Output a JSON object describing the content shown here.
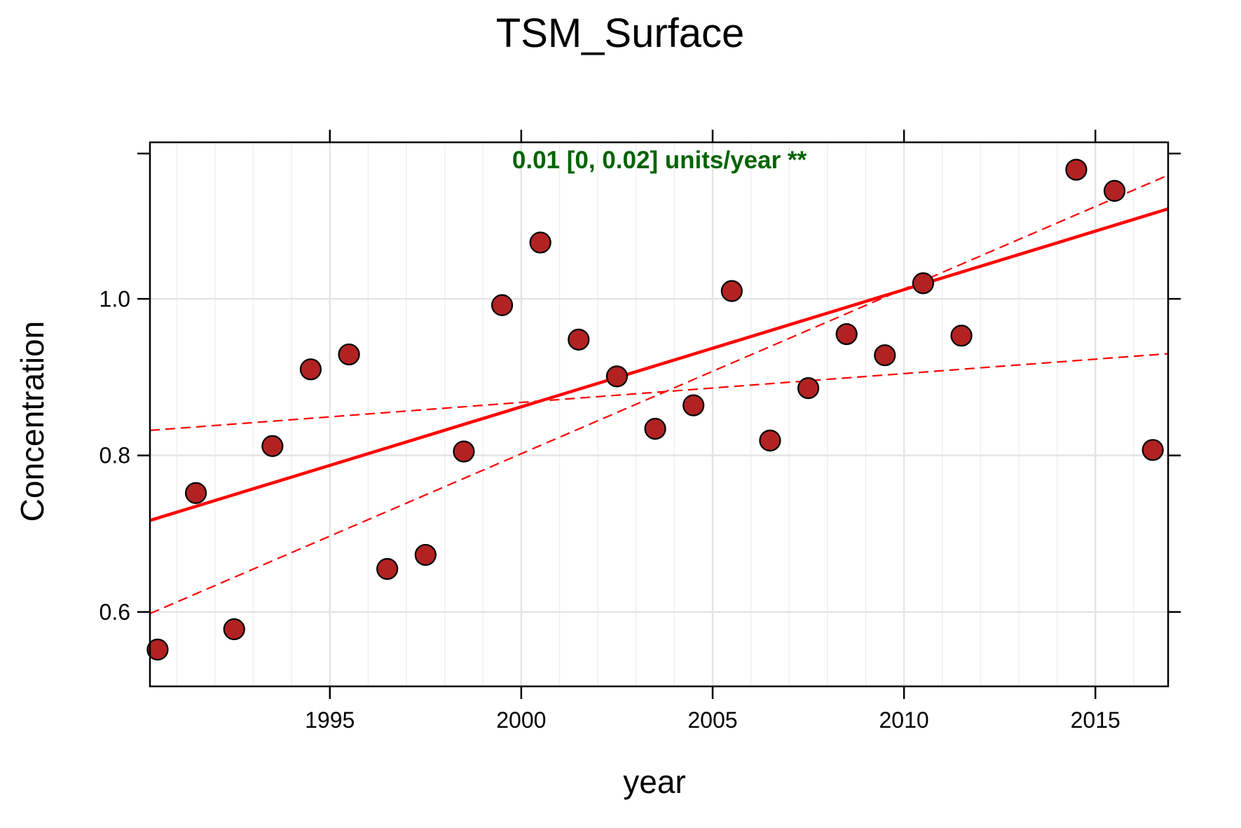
{
  "chart_data": {
    "type": "scatter",
    "title": "TSM_Surface",
    "xlabel": "year",
    "ylabel": "Concentration",
    "xlim": [
      1990.3,
      2016.9
    ],
    "ylim": [
      0.505,
      1.2
    ],
    "x_ticks": [
      1995,
      2000,
      2005,
      2010,
      2015
    ],
    "x_tick_labels": [
      "1995",
      "2000",
      "2005",
      "2010",
      "2015"
    ],
    "y_ticks": [
      0.6,
      0.8,
      1.0
    ],
    "y_tick_labels": [
      "0.6",
      "0.8",
      "1.0"
    ],
    "grid": true,
    "annotation": "0.01 [0, 0.02] units/year **",
    "annotation_color": "#006400",
    "point_color": "#B22222",
    "trend_color": "#FF0000",
    "points": {
      "x": [
        1990.5,
        1991.5,
        1992.5,
        1993.5,
        1994.5,
        1995.5,
        1996.5,
        1997.5,
        1998.5,
        1999.5,
        2000.5,
        2001.5,
        2002.5,
        2003.5,
        2004.5,
        2005.5,
        2006.5,
        2007.5,
        2008.5,
        2009.5,
        2010.5,
        2011.5,
        2014.5,
        2015.5,
        2016.5
      ],
      "y": [
        0.552,
        0.752,
        0.578,
        0.812,
        0.91,
        0.929,
        0.655,
        0.673,
        0.805,
        0.992,
        1.072,
        0.948,
        0.901,
        0.834,
        0.864,
        1.01,
        0.819,
        0.886,
        0.955,
        0.928,
        1.02,
        0.953,
        1.165,
        1.138,
        0.807
      ]
    },
    "trend": {
      "x": [
        1990.3,
        2016.9
      ],
      "y": [
        0.717,
        1.115
      ]
    },
    "trend_lower": {
      "x": [
        1990.3,
        2016.9
      ],
      "y": [
        0.832,
        0.93
      ]
    },
    "trend_upper": {
      "x": [
        1990.3,
        2016.9
      ],
      "y": [
        0.598,
        1.158
      ]
    }
  }
}
